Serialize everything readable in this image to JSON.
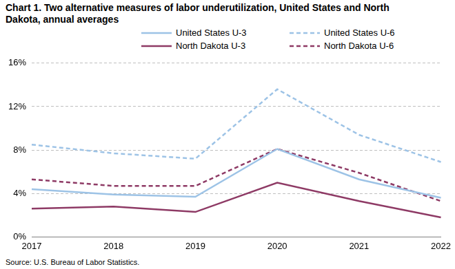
{
  "chart_data": {
    "type": "line",
    "title": "Chart 1. Two alternative measures of labor underutilization, United States and North Dakota, annual averages",
    "source": "Source: U.S. Bureau of Labor Statistics.",
    "categories": [
      "2017",
      "2018",
      "2019",
      "2020",
      "2021",
      "2022"
    ],
    "series": [
      {
        "name": "United States U-3",
        "color": "#9dc3e6",
        "line_style": "solid",
        "values": [
          4.4,
          3.9,
          3.7,
          8.1,
          5.3,
          3.6
        ]
      },
      {
        "name": "United States U-6",
        "color": "#9dc3e6",
        "line_style": "dashed",
        "values": [
          8.5,
          7.7,
          7.2,
          13.6,
          9.4,
          6.9
        ]
      },
      {
        "name": "North Dakota U-3",
        "color": "#8e3a65",
        "line_style": "solid",
        "values": [
          2.6,
          2.8,
          2.3,
          5.0,
          3.3,
          1.8
        ]
      },
      {
        "name": "North Dakota U-6",
        "color": "#8e3a65",
        "line_style": "dashed",
        "values": [
          5.3,
          4.7,
          4.7,
          8.1,
          5.9,
          3.3
        ]
      }
    ],
    "ylim": [
      0,
      16
    ],
    "yticks": [
      {
        "value": 0,
        "label": "0%"
      },
      {
        "value": 4,
        "label": "4%"
      },
      {
        "value": 8,
        "label": "8%"
      },
      {
        "value": 12,
        "label": "12%"
      },
      {
        "value": 16,
        "label": "16%"
      }
    ],
    "grid": true,
    "legend": "top"
  }
}
